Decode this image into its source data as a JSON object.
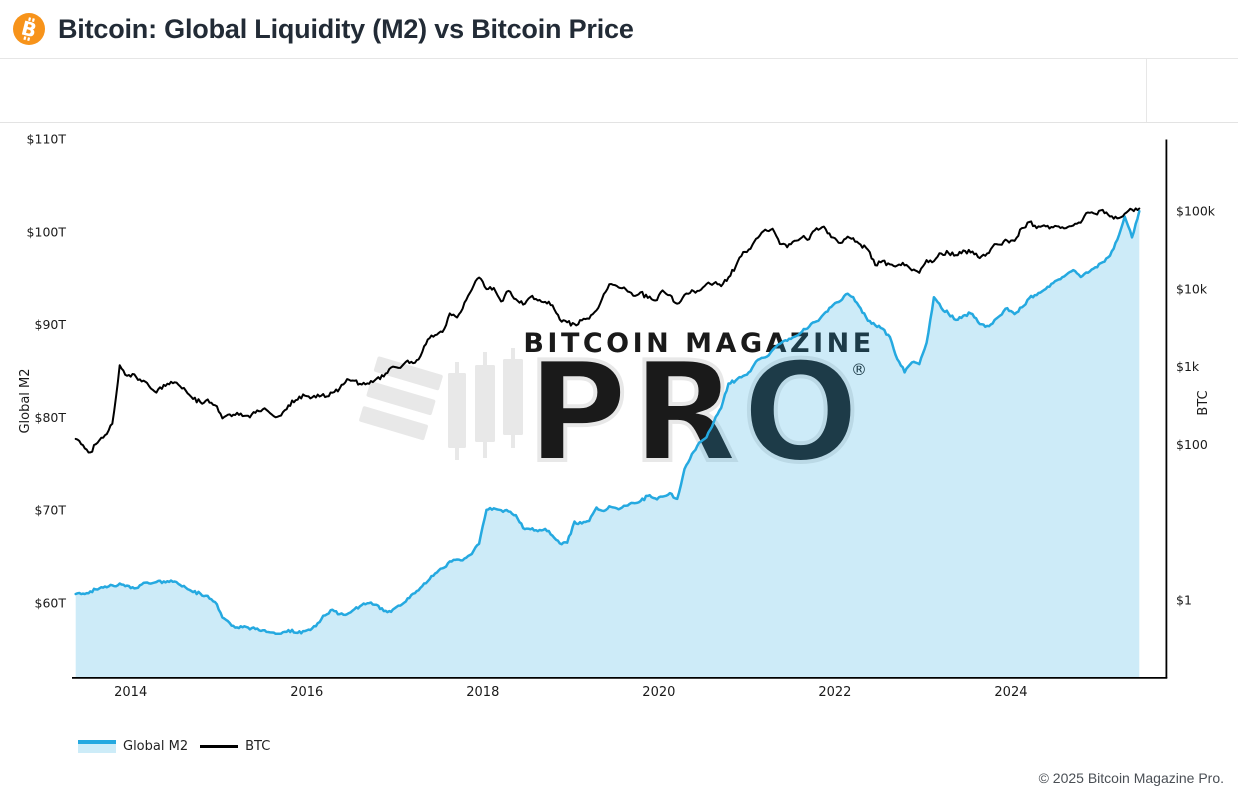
{
  "header": {
    "title": "Bitcoin: Global Liquidity (M2) vs Bitcoin Price"
  },
  "watermark": {
    "brand": "BITCOIN MAGAZINE",
    "product": "PRO",
    "registered": "®"
  },
  "footer": {
    "copyright": "© 2025 Bitcoin Magazine Pro."
  },
  "colors": {
    "accent_orange": "#f7931a",
    "m2_line": "#25a9e0",
    "m2_fill": "rgba(41,171,226,0.235)",
    "btc_line": "#000000",
    "watermark": "#e8e8e8",
    "axis_text": "#1a1a1a",
    "spine": "#000000"
  },
  "chart_data": {
    "type": "line",
    "title": "Bitcoin: Global Liquidity (M2) vs Bitcoin Price",
    "grid": false,
    "legend_position": "bottom-left",
    "x_range": [
      2013.3333,
      2025.7726
    ],
    "x_start": 2013.375,
    "x_step": 0.0833333,
    "x_ticks": [
      {
        "v": 2014,
        "label": "2014"
      },
      {
        "v": 2016,
        "label": "2016"
      },
      {
        "v": 2018,
        "label": "2018"
      },
      {
        "v": 2020,
        "label": "2020"
      },
      {
        "v": 2022,
        "label": "2022"
      },
      {
        "v": 2024,
        "label": "2024"
      }
    ],
    "left_axis": {
      "title": "Global M2",
      "scale": "linear",
      "unit": "trillion USD",
      "range": [
        52,
        110
      ],
      "ticks": [
        {
          "v": 60,
          "label": "$60T"
        },
        {
          "v": 70,
          "label": "$70T"
        },
        {
          "v": 80,
          "label": "$80T"
        },
        {
          "v": 90,
          "label": "$90T"
        },
        {
          "v": 100,
          "label": "$100T"
        },
        {
          "v": 110,
          "label": "$110T"
        }
      ]
    },
    "right_axis": {
      "title": "BTC",
      "scale": "log",
      "unit": "USD",
      "range": [
        0.102,
        843000
      ],
      "ticks": [
        {
          "v": 1,
          "label": "$1"
        },
        {
          "v": 100,
          "label": "$100"
        },
        {
          "v": 1000,
          "label": "$1k"
        },
        {
          "v": 10000,
          "label": "$10k"
        },
        {
          "v": 100000,
          "label": "$100k"
        }
      ]
    },
    "series": [
      {
        "name": "Global M2",
        "type": "area",
        "axis": "left",
        "color": "#25a9e0",
        "fill": "rgba(41,171,226,0.235)",
        "values": [
          60.9,
          61.0,
          61.2,
          61.5,
          61.7,
          61.9,
          62.0,
          61.8,
          61.6,
          61.9,
          62.1,
          62.2,
          62.3,
          62.4,
          62.1,
          61.7,
          61.2,
          61.0,
          60.7,
          60.1,
          58.5,
          57.9,
          57.3,
          57.5,
          57.2,
          57.0,
          56.9,
          56.8,
          56.7,
          57.0,
          56.8,
          56.9,
          57.0,
          57.8,
          58.7,
          59.2,
          58.8,
          58.7,
          59.3,
          59.7,
          60.0,
          59.8,
          59.1,
          59.0,
          59.7,
          60.2,
          60.9,
          61.6,
          62.4,
          63.1,
          63.8,
          64.4,
          64.7,
          64.7,
          65.3,
          66.4,
          70.1,
          70.2,
          70.0,
          69.8,
          69.5,
          68.1,
          67.9,
          67.7,
          67.9,
          67.3,
          66.4,
          66.5,
          68.7,
          68.5,
          68.8,
          70.3,
          69.9,
          70.4,
          70.0,
          70.4,
          70.8,
          71.0,
          71.5,
          71.3,
          71.4,
          71.9,
          71.2,
          74.5,
          76.0,
          77.2,
          77.8,
          79.5,
          81.0,
          83.6,
          84.0,
          84.4,
          85.0,
          86.2,
          86.5,
          87.2,
          87.9,
          88.3,
          88.7,
          89.3,
          89.8,
          90.4,
          91.2,
          91.9,
          92.4,
          93.2,
          93.0,
          91.8,
          90.4,
          89.9,
          89.6,
          88.6,
          86.2,
          84.9,
          85.9,
          85.8,
          88.0,
          93.0,
          91.8,
          91.2,
          90.5,
          90.9,
          91.2,
          90.3,
          89.8,
          90.1,
          91.0,
          91.8,
          91.2,
          91.9,
          92.8,
          93.2,
          93.8,
          94.4,
          94.9,
          95.3,
          95.8,
          95.1,
          95.6,
          96.2,
          96.7,
          97.4,
          99.2,
          101.7,
          99.4,
          102.2
        ]
      },
      {
        "name": "BTC",
        "type": "line",
        "axis": "right",
        "color": "#000000",
        "values": [
          115,
          98,
          78,
          108,
          128,
          185,
          1010,
          745,
          810,
          625,
          565,
          455,
          580,
          635,
          600,
          505,
          390,
          350,
          372,
          320,
          222,
          250,
          250,
          235,
          235,
          262,
          282,
          232,
          237,
          310,
          372,
          430,
          380,
          435,
          415,
          450,
          530,
          670,
          655,
          575,
          610,
          700,
          745,
          960,
          965,
          1180,
          1070,
          1350,
          2300,
          2480,
          2870,
          4700,
          4340,
          6450,
          9900,
          14200,
          10200,
          10300,
          6900,
          9240,
          7500,
          6400,
          7750,
          7010,
          6600,
          6300,
          4020,
          3740,
          3460,
          3850,
          4100,
          5350,
          8560,
          11800,
          10100,
          9600,
          8300,
          9150,
          7550,
          7200,
          9350,
          8550,
          6440,
          8620,
          9450,
          9140,
          11350,
          11650,
          10780,
          13800,
          19700,
          29000,
          33100,
          45200,
          58800,
          58000,
          37300,
          35000,
          41600,
          47100,
          43800,
          61300,
          64400,
          46200,
          38500,
          43200,
          45500,
          37650,
          31800,
          19900,
          23300,
          20050,
          19400,
          20500,
          17100,
          16550,
          23100,
          23150,
          28500,
          29250,
          27200,
          30480,
          29230,
          25930,
          26970,
          34650,
          37700,
          42280,
          42580,
          61200,
          71300,
          60640,
          67500,
          62680,
          64600,
          58970,
          63330,
          70200,
          96400,
          93400,
          102400,
          84350,
          82550,
          94200,
          104600,
          107100
        ]
      }
    ]
  }
}
